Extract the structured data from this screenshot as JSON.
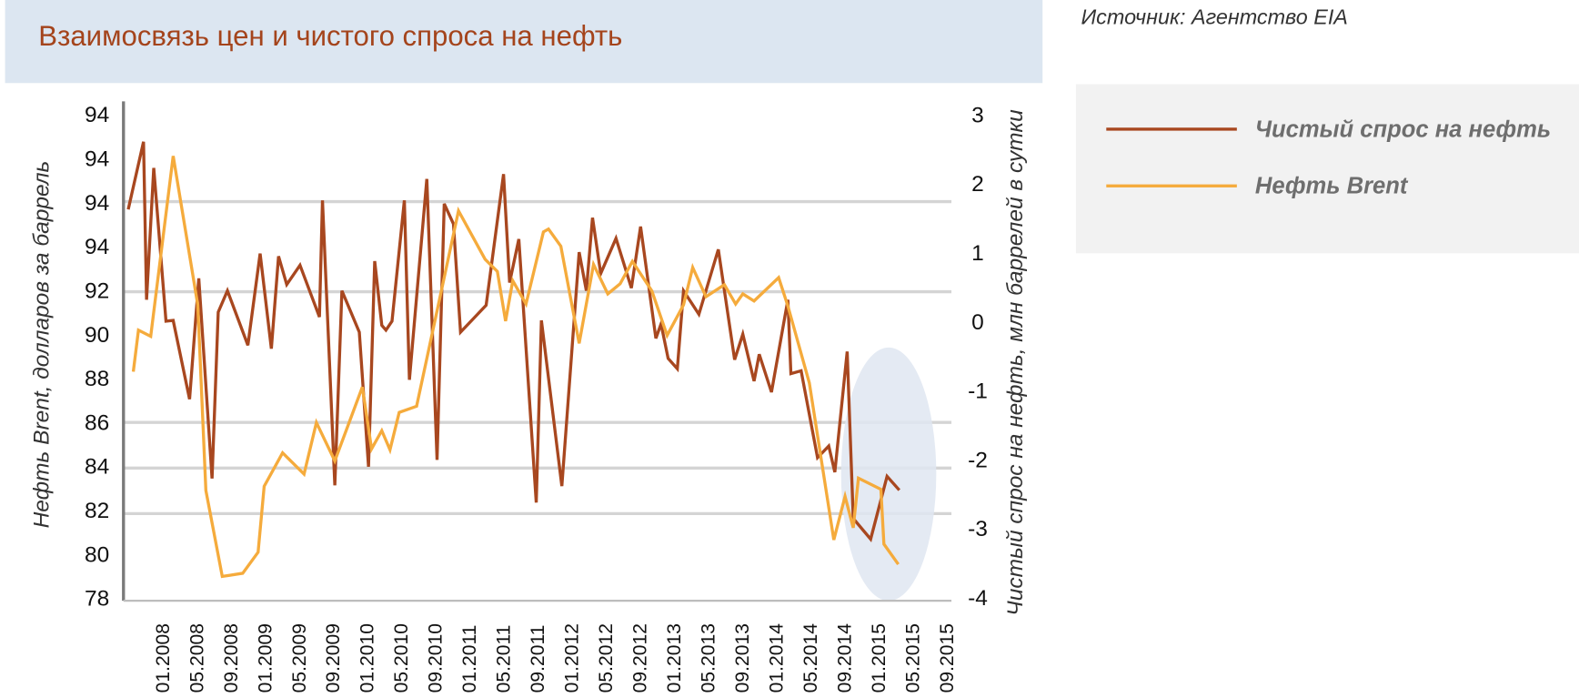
{
  "title": "Взаимосвязь цен и чистого спроса на нефть",
  "source": "Источник: Агентство EIA",
  "chart_data": {
    "type": "line",
    "title": "Взаимосвязь цен и чистого спроса на нефть",
    "ylabel_left": "Нефть Brent, долларов за баррель",
    "ylabel_right": "Чистый спрос на нефть, млн баррелей в сутки",
    "left_tick_labels": [
      "78",
      "80",
      "82",
      "84",
      "86",
      "88",
      "90",
      "92",
      "94",
      "94",
      "94",
      "94"
    ],
    "left_ylim": [
      78,
      100
    ],
    "right_tick_labels": [
      "-4",
      "-3",
      "-2",
      "-1",
      "0",
      "1",
      "2",
      "3"
    ],
    "right_ylim": [
      -4,
      3
    ],
    "x_tick_labels": [
      "01.2008",
      "05.2008",
      "09.2008",
      "01.2009",
      "05.2009",
      "09.2009",
      "01.2010",
      "05.2010",
      "09.2010",
      "01.2011",
      "05.2011",
      "09.2011",
      "01.2012",
      "05.2012",
      "09.2012",
      "01.2013",
      "05.2013",
      "09.2013",
      "01.2014",
      "05.2014",
      "09.2014",
      "01.2015",
      "05.2015",
      "09.2015"
    ],
    "xlim": [
      2007.67,
      2015.67
    ],
    "grid": "horizontal",
    "legend_position": "right",
    "highlight": "ellipse around 09.2014–05.2015",
    "series": [
      {
        "name": "Чистый спрос на нефть",
        "axis": "right",
        "color": "#a8471f",
        "points": [
          [
            2007.67,
            1.62
          ],
          [
            2007.82,
            2.6
          ],
          [
            2007.85,
            0.31
          ],
          [
            2007.92,
            2.22
          ],
          [
            2008.04,
            0.0
          ],
          [
            2008.11,
            0.01
          ],
          [
            2008.27,
            -1.13
          ],
          [
            2008.36,
            0.62
          ],
          [
            2008.49,
            -2.28
          ],
          [
            2008.55,
            0.13
          ],
          [
            2008.64,
            0.44
          ],
          [
            2008.84,
            -0.35
          ],
          [
            2008.96,
            0.98
          ],
          [
            2009.07,
            -0.4
          ],
          [
            2009.14,
            0.94
          ],
          [
            2009.22,
            0.53
          ],
          [
            2009.35,
            0.81
          ],
          [
            2009.54,
            0.06
          ],
          [
            2009.57,
            1.75
          ],
          [
            2009.69,
            -2.38
          ],
          [
            2009.76,
            0.44
          ],
          [
            2009.93,
            -0.16
          ],
          [
            2010.02,
            -2.11
          ],
          [
            2010.08,
            0.87
          ],
          [
            2010.15,
            -0.06
          ],
          [
            2010.19,
            -0.13
          ],
          [
            2010.25,
            0.0
          ],
          [
            2010.37,
            1.75
          ],
          [
            2010.42,
            -0.85
          ],
          [
            2010.59,
            2.06
          ],
          [
            2010.69,
            -2.01
          ],
          [
            2010.76,
            1.7
          ],
          [
            2010.85,
            1.41
          ],
          [
            2010.92,
            -0.16
          ],
          [
            2011.17,
            0.23
          ],
          [
            2011.34,
            2.13
          ],
          [
            2011.4,
            0.56
          ],
          [
            2011.49,
            1.19
          ],
          [
            2011.66,
            -2.63
          ],
          [
            2011.71,
            0.01
          ],
          [
            2011.91,
            -2.39
          ],
          [
            2012.08,
            1.0
          ],
          [
            2012.15,
            0.44
          ],
          [
            2012.21,
            1.5
          ],
          [
            2012.29,
            0.69
          ],
          [
            2012.44,
            1.2
          ],
          [
            2012.59,
            0.48
          ],
          [
            2012.68,
            1.37
          ],
          [
            2012.83,
            -0.25
          ],
          [
            2012.88,
            -0.04
          ],
          [
            2012.95,
            -0.54
          ],
          [
            2013.04,
            -0.69
          ],
          [
            2013.1,
            0.44
          ],
          [
            2013.25,
            0.1
          ],
          [
            2013.44,
            1.04
          ],
          [
            2013.6,
            -0.56
          ],
          [
            2013.68,
            -0.19
          ],
          [
            2013.79,
            -0.87
          ],
          [
            2013.84,
            -0.48
          ],
          [
            2013.96,
            -1.03
          ],
          [
            2014.12,
            0.31
          ],
          [
            2014.15,
            -0.76
          ],
          [
            2014.25,
            -0.72
          ],
          [
            2014.41,
            -1.98
          ],
          [
            2014.52,
            -1.81
          ],
          [
            2014.58,
            -2.19
          ],
          [
            2014.7,
            -0.44
          ],
          [
            2014.76,
            -2.86
          ],
          [
            2014.93,
            -3.16
          ],
          [
            2015.09,
            -2.25
          ],
          [
            2015.21,
            -2.45
          ]
        ]
      },
      {
        "name": "Нефть Brent",
        "axis": "left",
        "color": "#f5ab3c",
        "points": [
          [
            2007.72,
            88.28
          ],
          [
            2007.77,
            90.17
          ],
          [
            2007.89,
            89.89
          ],
          [
            2008.11,
            98.09
          ],
          [
            2008.35,
            91.32
          ],
          [
            2008.43,
            82.88
          ],
          [
            2008.59,
            78.97
          ],
          [
            2008.79,
            79.11
          ],
          [
            2008.94,
            80.07
          ],
          [
            2009.0,
            83.07
          ],
          [
            2009.18,
            84.59
          ],
          [
            2009.39,
            83.62
          ],
          [
            2009.51,
            85.97
          ],
          [
            2009.69,
            84.22
          ],
          [
            2009.96,
            87.58
          ],
          [
            2010.05,
            84.77
          ],
          [
            2010.15,
            85.6
          ],
          [
            2010.23,
            84.73
          ],
          [
            2010.32,
            86.43
          ],
          [
            2010.49,
            86.71
          ],
          [
            2010.9,
            95.6
          ],
          [
            2011.16,
            93.39
          ],
          [
            2011.28,
            92.84
          ],
          [
            2011.36,
            90.58
          ],
          [
            2011.43,
            92.42
          ],
          [
            2011.56,
            91.36
          ],
          [
            2011.73,
            94.64
          ],
          [
            2011.78,
            94.77
          ],
          [
            2011.9,
            93.99
          ],
          [
            2012.08,
            89.57
          ],
          [
            2012.22,
            93.16
          ],
          [
            2012.36,
            91.82
          ],
          [
            2012.48,
            92.28
          ],
          [
            2012.6,
            93.3
          ],
          [
            2012.79,
            91.96
          ],
          [
            2012.94,
            89.93
          ],
          [
            2013.1,
            91.32
          ],
          [
            2013.19,
            93.02
          ],
          [
            2013.32,
            91.69
          ],
          [
            2013.5,
            92.24
          ],
          [
            2013.61,
            91.36
          ],
          [
            2013.68,
            91.82
          ],
          [
            2013.79,
            91.5
          ],
          [
            2014.03,
            92.56
          ],
          [
            2014.12,
            91.27
          ],
          [
            2014.33,
            87.77
          ],
          [
            2014.57,
            80.63
          ],
          [
            2014.68,
            82.61
          ],
          [
            2014.76,
            81.18
          ],
          [
            2014.81,
            83.44
          ],
          [
            2015.03,
            82.93
          ],
          [
            2015.06,
            80.44
          ],
          [
            2015.2,
            79.52
          ]
        ]
      }
    ]
  }
}
